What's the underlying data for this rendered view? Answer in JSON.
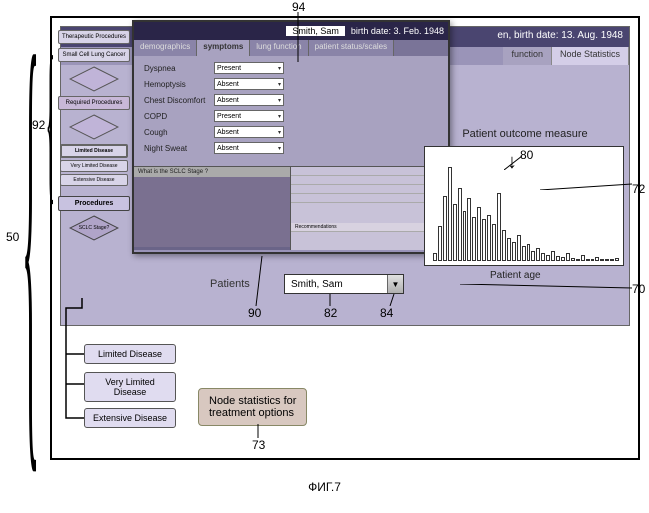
{
  "figure_label": "ФИГ.7",
  "callouts": {
    "c50": "50",
    "c92": "92",
    "c94": "94",
    "c90": "90",
    "c82": "82",
    "c84": "84",
    "c72": "72",
    "c80": "80",
    "c70": "70",
    "c73": "73"
  },
  "bg_window": {
    "title_suffix": "en, birth date: 13.  Aug.  1948",
    "tabs": {
      "func": "function",
      "node": "Node Statistics"
    }
  },
  "sidebar": {
    "box_therapeutic": "Therapeutic\nProcedures",
    "box_sclc": "Small Cell Lung\nCancer",
    "diamond_1": " ",
    "box_proc_mid": "Required\nProcedures",
    "diamond_2": " ",
    "box_limited_hl": "Limited Disease",
    "box_very_limited_s": "Very Limited\nDisease",
    "box_extensive_s": "Extensive Disease",
    "header_procedures": "Procedures",
    "diamond_sclc": "SCLC Stage?"
  },
  "disease_boxes": {
    "limited": "Limited Disease",
    "very_limited": "Very Limited\nDisease",
    "extensive": "Extensive Disease"
  },
  "popup": {
    "title_name": "Smith, Sam",
    "title_birth": "birth date: 3.  Feb.  1948",
    "tabs": {
      "demo": "demographics",
      "symptoms": "symptoms",
      "lung": "lung function",
      "status": "patient status/scales"
    },
    "form": [
      {
        "label": "Dyspnea",
        "value": "Present"
      },
      {
        "label": "Hemoptysis",
        "value": "Absent"
      },
      {
        "label": "Chest Discomfort",
        "value": "Absent"
      },
      {
        "label": "COPD",
        "value": "Present"
      },
      {
        "label": "Cough",
        "value": "Absent"
      },
      {
        "label": "Night Sweat",
        "value": "Absent"
      }
    ],
    "lower_left_header": "What is the SCLC Stage ?",
    "lower_right_lines": [
      "",
      "",
      "",
      ""
    ],
    "lower_right_footer": "Recommendations"
  },
  "patients": {
    "label": "Patients",
    "selected": "Smith, Sam"
  },
  "chart": {
    "title": "Patient outcome measure",
    "xlabel": "Patient age",
    "bars": [
      8,
      34,
      62,
      90,
      55,
      70,
      48,
      60,
      42,
      52,
      40,
      44,
      35,
      65,
      30,
      22,
      18,
      25,
      14,
      16,
      10,
      12,
      8,
      6,
      10,
      5,
      4,
      8,
      3,
      2,
      6,
      2,
      1,
      4,
      1,
      2,
      1,
      3
    ],
    "bar_border": "#333333",
    "bar_fill": "#ffffff",
    "arrow_index": 13
  },
  "node_stats": "Node statistics for\ntreatment options",
  "colors": {
    "bg_window": "#b8b2d0",
    "popup_title": "#2a2548",
    "sidebar_box": "#d8d4e8"
  }
}
